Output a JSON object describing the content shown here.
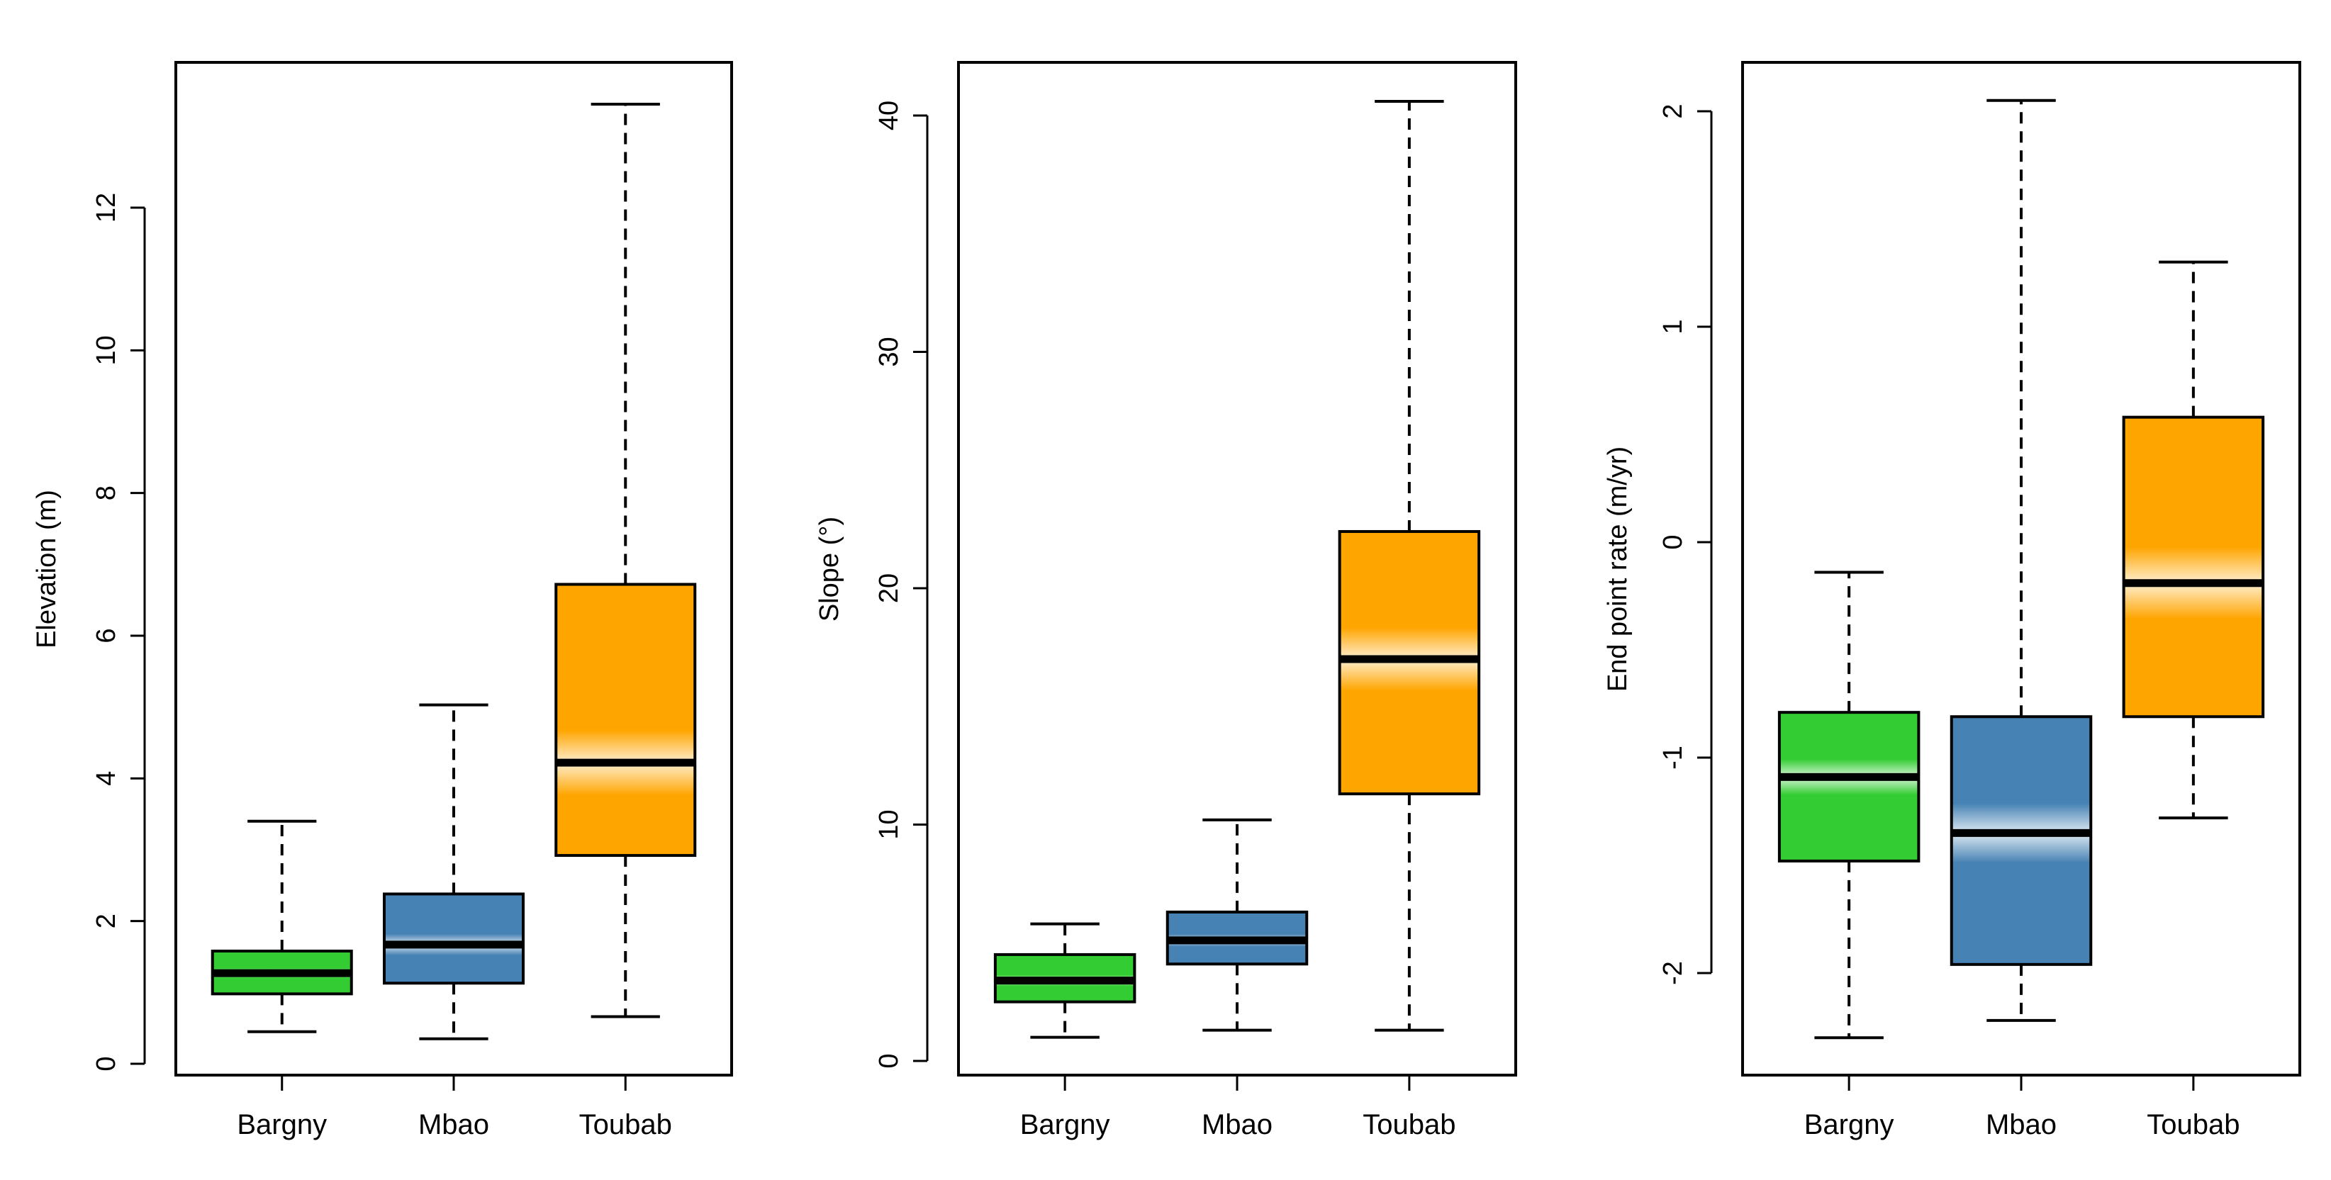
{
  "figure": {
    "description_kind": "three side-by-side boxplots"
  },
  "colors": {
    "Bargny": "#33cc33",
    "Mbao": "#4682b4",
    "Toubab": "#ffa500",
    "median": "#000000",
    "outline": "#000000"
  },
  "chart_data": [
    {
      "type": "boxplot",
      "title": "",
      "xlabel": "",
      "ylabel": "Elevation (m)",
      "ylim": [
        0,
        13.5
      ],
      "yticks": [
        0,
        2,
        4,
        6,
        8,
        10,
        12
      ],
      "ytick_labels": [
        "0",
        "2",
        "4",
        "6",
        "8",
        "10",
        "12"
      ],
      "categories": [
        "Bargny",
        "Mbao",
        "Toubab"
      ],
      "boxes": [
        {
          "name": "Bargny",
          "whisker_low": 0.45,
          "q1": 0.98,
          "median": 1.27,
          "q3": 1.58,
          "whisker_high": 3.4
        },
        {
          "name": "Mbao",
          "whisker_low": 0.35,
          "q1": 1.13,
          "median": 1.67,
          "q3": 2.38,
          "whisker_high": 5.03
        },
        {
          "name": "Toubab",
          "whisker_low": 0.66,
          "q1": 2.92,
          "median": 4.22,
          "q3": 6.72,
          "whisker_high": 13.45
        }
      ]
    },
    {
      "type": "boxplot",
      "title": "",
      "xlabel": "",
      "ylabel": "Slope (°)",
      "ylim": [
        0,
        41
      ],
      "yticks": [
        0,
        10,
        20,
        30,
        40
      ],
      "ytick_labels": [
        "0",
        "10",
        "20",
        "30",
        "40"
      ],
      "categories": [
        "Bargny",
        "Mbao",
        "Toubab"
      ],
      "boxes": [
        {
          "name": "Bargny",
          "whisker_low": 1.0,
          "q1": 2.5,
          "median": 3.4,
          "q3": 4.5,
          "whisker_high": 5.8
        },
        {
          "name": "Mbao",
          "whisker_low": 1.3,
          "q1": 4.1,
          "median": 5.1,
          "q3": 6.3,
          "whisker_high": 10.2
        },
        {
          "name": "Toubab",
          "whisker_low": 1.3,
          "q1": 11.3,
          "median": 17.0,
          "q3": 22.4,
          "whisker_high": 40.6
        }
      ]
    },
    {
      "type": "boxplot",
      "title": "",
      "xlabel": "",
      "ylabel": "End point rate (m/yr)",
      "ylim": [
        -2.4,
        2.1
      ],
      "yticks": [
        -2,
        -1,
        0,
        1,
        2
      ],
      "ytick_labels": [
        "-2",
        "-1",
        "0",
        "1",
        "2"
      ],
      "categories": [
        "Bargny",
        "Mbao",
        "Toubab"
      ],
      "boxes": [
        {
          "name": "Bargny",
          "whisker_low": -2.3,
          "q1": -1.48,
          "median": -1.09,
          "q3": -0.79,
          "whisker_high": -0.14
        },
        {
          "name": "Mbao",
          "whisker_low": -2.22,
          "q1": -1.96,
          "median": -1.35,
          "q3": -0.81,
          "whisker_high": 2.05
        },
        {
          "name": "Toubab",
          "whisker_low": -1.28,
          "q1": -0.81,
          "median": -0.19,
          "q3": 0.58,
          "whisker_high": 1.3
        }
      ]
    }
  ]
}
